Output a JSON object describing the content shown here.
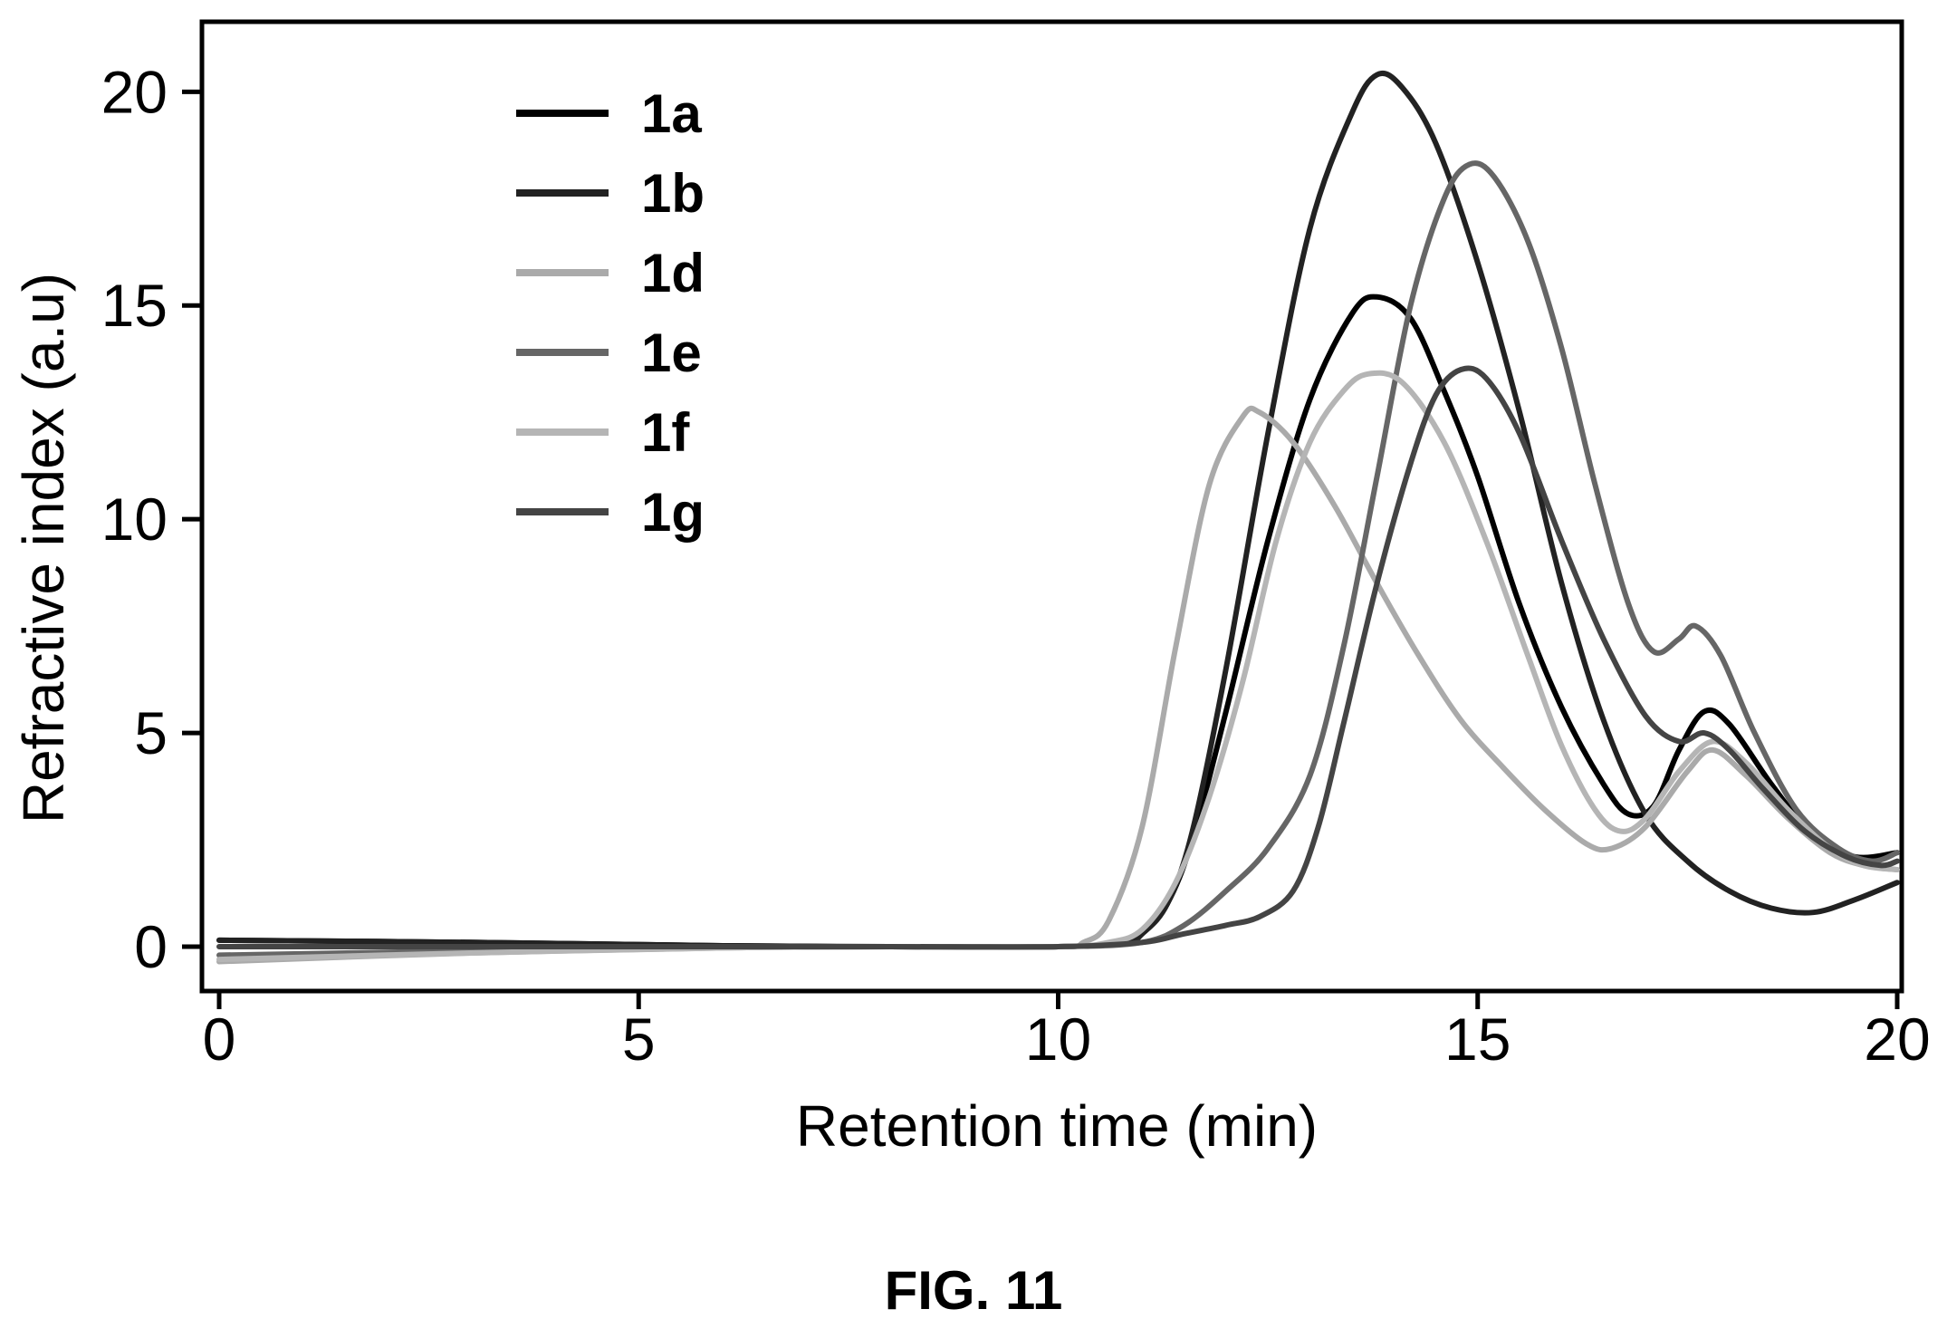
{
  "figure_caption": "FIG. 11",
  "chart_data": {
    "type": "line",
    "title": "",
    "xlabel": "Retention time (min)",
    "ylabel": "Refractive index (a.u)",
    "xlim": [
      0,
      20
    ],
    "ylim": [
      -0.7,
      21.3
    ],
    "x_ticks": [
      0,
      5,
      10,
      15,
      20
    ],
    "y_ticks": [
      0,
      5,
      10,
      15,
      20
    ],
    "grid": false,
    "legend_position": "top-left",
    "series": [
      {
        "name": "1a",
        "color": "#000000",
        "points": [
          [
            0,
            0.15
          ],
          [
            3,
            0.1
          ],
          [
            6,
            0.02
          ],
          [
            8,
            0
          ],
          [
            10,
            0
          ],
          [
            10.8,
            0.1
          ],
          [
            11,
            0.3
          ],
          [
            11.3,
            1
          ],
          [
            11.6,
            2.5
          ],
          [
            12,
            5.5
          ],
          [
            12.5,
            9.5
          ],
          [
            13,
            12.8
          ],
          [
            13.5,
            14.8
          ],
          [
            13.8,
            15.2
          ],
          [
            14.2,
            14.7
          ],
          [
            14.6,
            13
          ],
          [
            15,
            11
          ],
          [
            15.5,
            8
          ],
          [
            16,
            5.6
          ],
          [
            16.5,
            3.8
          ],
          [
            16.8,
            3.1
          ],
          [
            17.1,
            3.3
          ],
          [
            17.4,
            4.6
          ],
          [
            17.7,
            5.5
          ],
          [
            18,
            5.2
          ],
          [
            18.5,
            3.8
          ],
          [
            19,
            2.6
          ],
          [
            19.5,
            2.1
          ],
          [
            20,
            2.2
          ]
        ]
      },
      {
        "name": "1b",
        "color": "#222222",
        "points": [
          [
            0,
            0.15
          ],
          [
            3,
            0.1
          ],
          [
            6,
            0.02
          ],
          [
            8,
            0
          ],
          [
            10,
            0
          ],
          [
            10.8,
            0.1
          ],
          [
            11,
            0.3
          ],
          [
            11.3,
            1
          ],
          [
            11.6,
            2.7
          ],
          [
            12,
            6.5
          ],
          [
            12.5,
            12
          ],
          [
            13,
            16.8
          ],
          [
            13.5,
            19.5
          ],
          [
            13.8,
            20.4
          ],
          [
            14.1,
            20.1
          ],
          [
            14.5,
            18.8
          ],
          [
            15,
            16
          ],
          [
            15.5,
            12.5
          ],
          [
            16,
            8.5
          ],
          [
            16.5,
            5.3
          ],
          [
            17,
            3.1
          ],
          [
            17.5,
            2
          ],
          [
            18,
            1.3
          ],
          [
            18.5,
            0.9
          ],
          [
            19,
            0.8
          ],
          [
            19.5,
            1.1
          ],
          [
            20,
            1.5
          ]
        ]
      },
      {
        "name": "1d",
        "color": "#aaaaaa",
        "points": [
          [
            0,
            -0.35
          ],
          [
            3,
            -0.15
          ],
          [
            6,
            -0.03
          ],
          [
            8,
            0
          ],
          [
            10,
            0
          ],
          [
            10.3,
            0.1
          ],
          [
            10.6,
            0.6
          ],
          [
            11,
            2.8
          ],
          [
            11.4,
            7
          ],
          [
            11.8,
            10.8
          ],
          [
            12.2,
            12.4
          ],
          [
            12.4,
            12.5
          ],
          [
            12.8,
            11.8
          ],
          [
            13.3,
            10.3
          ],
          [
            13.8,
            8.5
          ],
          [
            14.3,
            6.8
          ],
          [
            14.8,
            5.3
          ],
          [
            15.3,
            4.2
          ],
          [
            15.8,
            3.2
          ],
          [
            16.3,
            2.4
          ],
          [
            16.6,
            2.3
          ],
          [
            17,
            2.8
          ],
          [
            17.5,
            4.1
          ],
          [
            17.8,
            4.6
          ],
          [
            18.2,
            4
          ],
          [
            18.7,
            3
          ],
          [
            19.2,
            2.2
          ],
          [
            19.6,
            1.9
          ],
          [
            20,
            1.8
          ]
        ]
      },
      {
        "name": "1e",
        "color": "#666666",
        "points": [
          [
            0,
            -0.2
          ],
          [
            3,
            -0.1
          ],
          [
            6,
            -0.02
          ],
          [
            8,
            0
          ],
          [
            10,
            0
          ],
          [
            11,
            0.1
          ],
          [
            11.5,
            0.5
          ],
          [
            12,
            1.3
          ],
          [
            12.5,
            2.3
          ],
          [
            13,
            4
          ],
          [
            13.4,
            7
          ],
          [
            13.8,
            11
          ],
          [
            14.2,
            15
          ],
          [
            14.6,
            17.5
          ],
          [
            14.9,
            18.3
          ],
          [
            15.2,
            18
          ],
          [
            15.6,
            16.5
          ],
          [
            16,
            14
          ],
          [
            16.4,
            10.8
          ],
          [
            16.8,
            8
          ],
          [
            17.1,
            6.9
          ],
          [
            17.4,
            7.2
          ],
          [
            17.6,
            7.5
          ],
          [
            17.9,
            6.8
          ],
          [
            18.3,
            5
          ],
          [
            18.8,
            3.2
          ],
          [
            19.3,
            2.3
          ],
          [
            19.7,
            2
          ],
          [
            20,
            2.2
          ]
        ]
      },
      {
        "name": "1f",
        "color": "#b5b5b5",
        "points": [
          [
            0,
            -0.3
          ],
          [
            3,
            -0.15
          ],
          [
            6,
            -0.03
          ],
          [
            8,
            0
          ],
          [
            10,
            0
          ],
          [
            10.6,
            0.1
          ],
          [
            11,
            0.4
          ],
          [
            11.4,
            1.5
          ],
          [
            11.8,
            3.5
          ],
          [
            12.2,
            6.2
          ],
          [
            12.6,
            9.5
          ],
          [
            13,
            11.8
          ],
          [
            13.4,
            13
          ],
          [
            13.7,
            13.4
          ],
          [
            14.1,
            13.2
          ],
          [
            14.6,
            11.8
          ],
          [
            15.1,
            9.5
          ],
          [
            15.6,
            6.8
          ],
          [
            16,
            4.7
          ],
          [
            16.4,
            3.2
          ],
          [
            16.7,
            2.7
          ],
          [
            17,
            3
          ],
          [
            17.4,
            4.1
          ],
          [
            17.8,
            4.8
          ],
          [
            18.2,
            4.3
          ],
          [
            18.7,
            3.2
          ],
          [
            19.2,
            2.3
          ],
          [
            19.6,
            1.9
          ],
          [
            20,
            1.8
          ]
        ]
      },
      {
        "name": "1g",
        "color": "#444444",
        "points": [
          [
            0,
            0
          ],
          [
            3,
            0
          ],
          [
            6,
            0
          ],
          [
            8,
            0
          ],
          [
            10,
            0
          ],
          [
            11,
            0.1
          ],
          [
            11.5,
            0.3
          ],
          [
            12,
            0.5
          ],
          [
            12.4,
            0.7
          ],
          [
            12.8,
            1.3
          ],
          [
            13.1,
            2.8
          ],
          [
            13.4,
            5.2
          ],
          [
            13.8,
            8.5
          ],
          [
            14.2,
            11.3
          ],
          [
            14.5,
            12.9
          ],
          [
            14.8,
            13.5
          ],
          [
            15.1,
            13.3
          ],
          [
            15.5,
            12
          ],
          [
            16,
            9.5
          ],
          [
            16.5,
            7.2
          ],
          [
            17,
            5.4
          ],
          [
            17.4,
            4.8
          ],
          [
            17.7,
            5
          ],
          [
            18,
            4.6
          ],
          [
            18.4,
            3.7
          ],
          [
            18.9,
            2.7
          ],
          [
            19.4,
            2.1
          ],
          [
            19.8,
            1.9
          ],
          [
            20,
            2
          ]
        ]
      }
    ]
  }
}
